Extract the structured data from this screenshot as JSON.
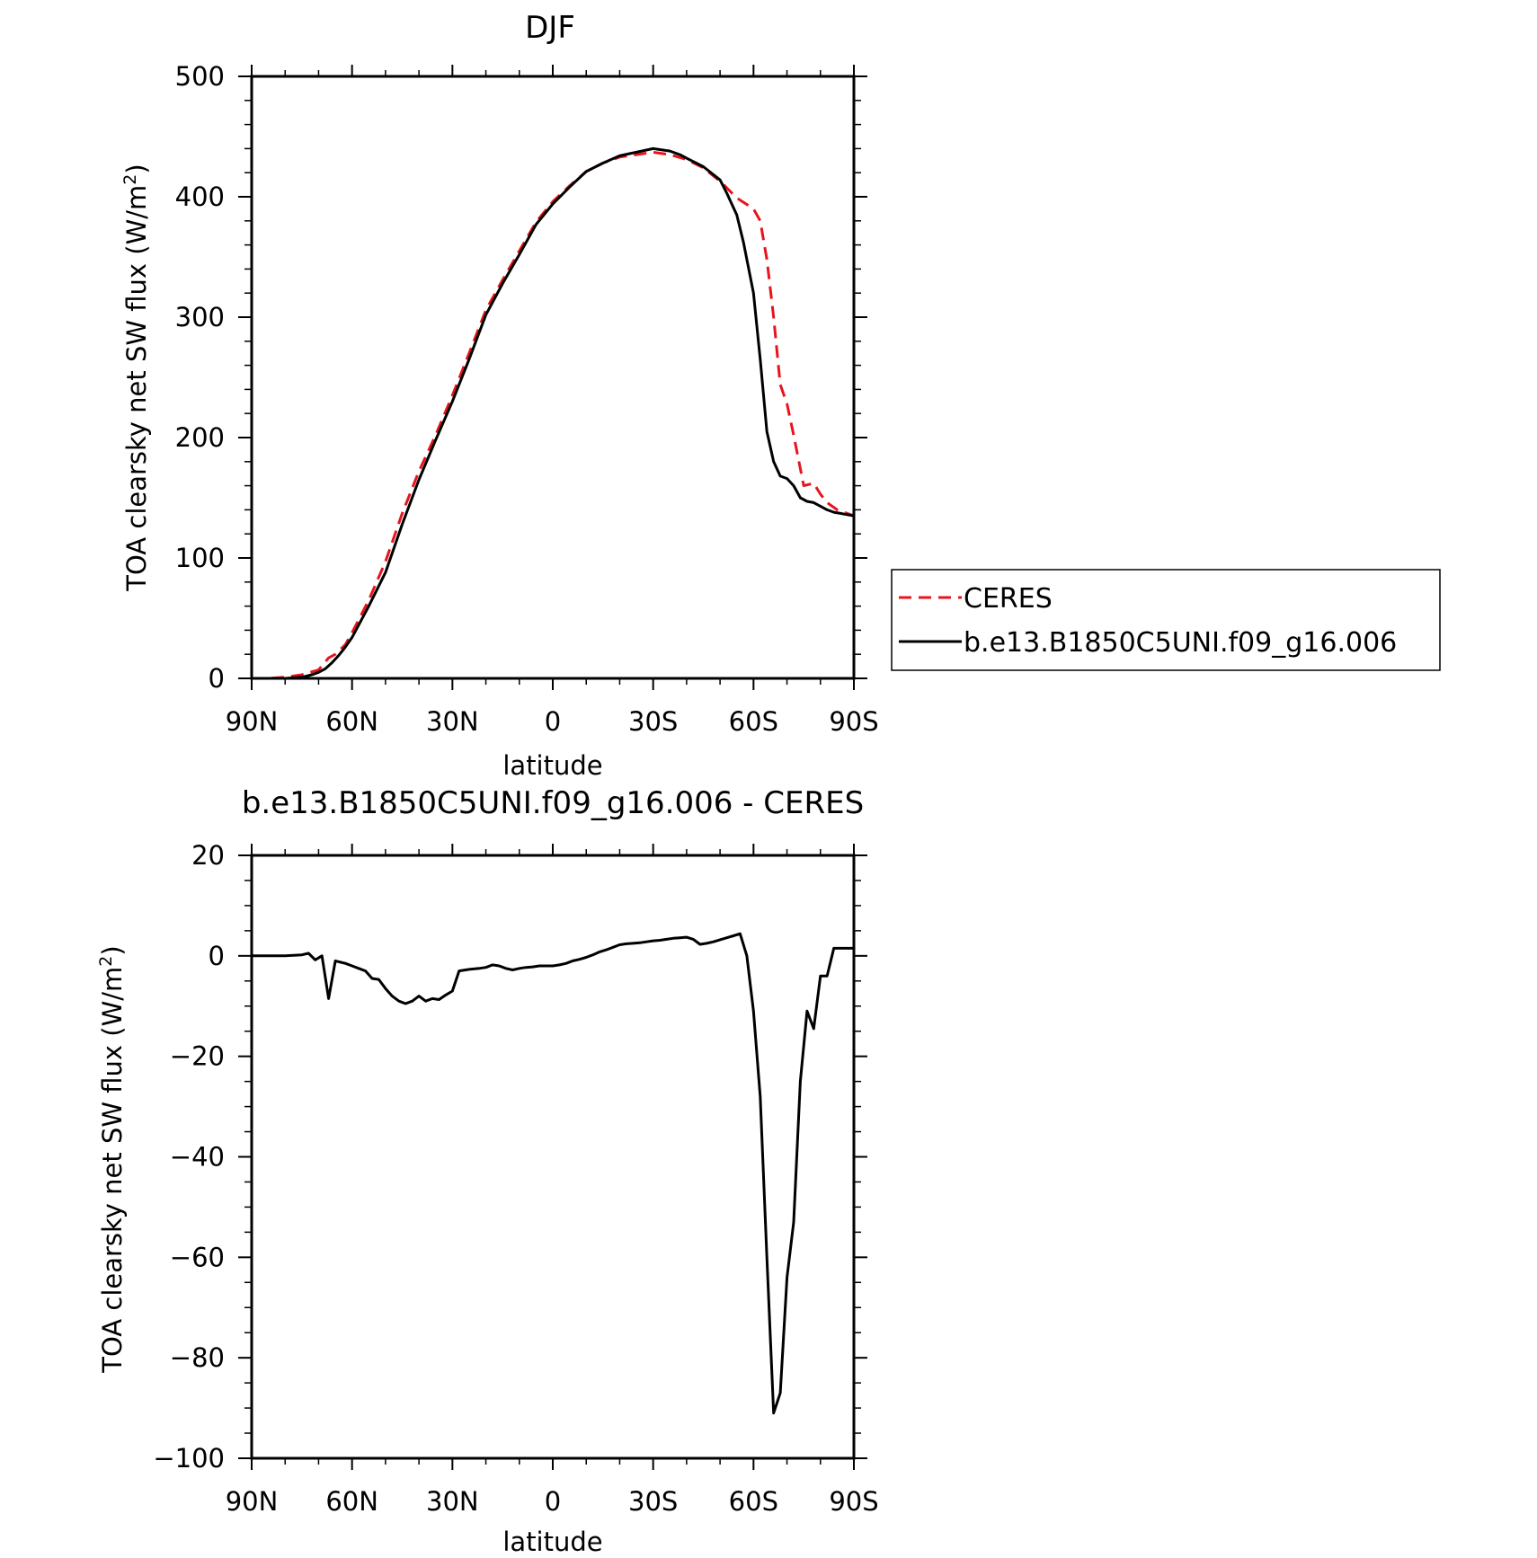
{
  "chart_data": [
    {
      "type": "line",
      "title": "DJF",
      "xlabel": "latitude",
      "ylabel": "TOA clearsky net SW flux (W/m",
      "ylabel_sup": "2",
      "ylabel_close": ")",
      "xlim": [
        90,
        -90
      ],
      "ylim": [
        0,
        500
      ],
      "x_ticks": [
        90,
        60,
        30,
        0,
        -30,
        -60,
        -90
      ],
      "x_tick_labels": [
        "90N",
        "60N",
        "30N",
        "0",
        "30S",
        "60S",
        "90S"
      ],
      "y_ticks": [
        0,
        100,
        200,
        300,
        400,
        500
      ],
      "y_tick_labels": [
        "0",
        "100",
        "200",
        "300",
        "400",
        "500"
      ],
      "legend": "right",
      "grid": false,
      "series": [
        {
          "name": "CERES",
          "color": "#e8141c",
          "dash": "dashed",
          "x": [
            90,
            85,
            80,
            75,
            70,
            67,
            65,
            62,
            60,
            55,
            50,
            45,
            40,
            35,
            30,
            25,
            20,
            15,
            10,
            5,
            0,
            -5,
            -10,
            -15,
            -20,
            -25,
            -30,
            -35,
            -40,
            -45,
            -50,
            -55,
            -60,
            -62,
            -64,
            -66,
            -68,
            -70,
            -72,
            -75,
            -78,
            -80,
            -82,
            -85,
            -87,
            -90
          ],
          "values": [
            0,
            0,
            1,
            3,
            7,
            17,
            20,
            28,
            38,
            65,
            97,
            137,
            172,
            202,
            235,
            270,
            306,
            331,
            355,
            379,
            396,
            409,
            421,
            428,
            433,
            435,
            437,
            435,
            431,
            424,
            413,
            399,
            390,
            380,
            348,
            300,
            244,
            228,
            202,
            160,
            162,
            153,
            146,
            140,
            138,
            135
          ]
        },
        {
          "name": "b.e13.B1850C5UNI.f09_g16.006",
          "color": "#000000",
          "dash": "solid",
          "x": [
            90,
            85,
            80,
            75,
            72,
            70,
            68,
            66,
            64,
            62,
            60,
            55,
            50,
            45,
            40,
            35,
            30,
            25,
            20,
            15,
            10,
            5,
            0,
            -5,
            -10,
            -15,
            -20,
            -25,
            -30,
            -35,
            -38,
            -40,
            -45,
            -50,
            -52,
            -55,
            -57,
            -60,
            -62,
            -64,
            -66,
            -68,
            -70,
            -72,
            -74,
            -76,
            -78,
            -80,
            -82,
            -84,
            -86,
            -88,
            -90
          ],
          "values": [
            0,
            0,
            0,
            1,
            3,
            5,
            8,
            13,
            19,
            26,
            34,
            60,
            88,
            128,
            165,
            198,
            230,
            265,
            302,
            328,
            352,
            377,
            394,
            408,
            421,
            428,
            434,
            437,
            440,
            438,
            435,
            432,
            425,
            414,
            403,
            385,
            362,
            320,
            265,
            205,
            180,
            168,
            166,
            160,
            150,
            147,
            146,
            143,
            140,
            138,
            137,
            136,
            135
          ]
        }
      ]
    },
    {
      "type": "line",
      "title": "b.e13.B1850C5UNI.f09_g16.006 - CERES",
      "xlabel": "latitude",
      "ylabel": "TOA clearsky net SW flux (W/m",
      "ylabel_sup": "2",
      "ylabel_close": ")",
      "xlim": [
        90,
        -90
      ],
      "ylim": [
        -100,
        20
      ],
      "x_ticks": [
        90,
        60,
        30,
        0,
        -30,
        -60,
        -90
      ],
      "x_tick_labels": [
        "90N",
        "60N",
        "30N",
        "0",
        "30S",
        "60S",
        "90S"
      ],
      "y_ticks": [
        -100,
        -80,
        -60,
        -40,
        -20,
        0,
        20
      ],
      "y_tick_labels": [
        "−100",
        "−80",
        "−60",
        "−40",
        "−20",
        "0",
        "20"
      ],
      "grid": false,
      "series": [
        {
          "color": "#000000",
          "dash": "solid",
          "x": [
            90,
            80,
            75,
            73,
            71,
            69,
            67,
            65,
            62,
            60,
            58,
            56,
            54,
            52,
            50,
            48,
            46,
            44,
            42,
            40,
            38,
            36,
            34,
            32,
            30,
            28,
            25,
            22,
            20,
            18,
            16,
            14,
            12,
            10,
            8,
            6,
            4,
            2,
            0,
            -2,
            -4,
            -6,
            -8,
            -10,
            -12,
            -14,
            -16,
            -18,
            -20,
            -22,
            -24,
            -26,
            -28,
            -30,
            -32,
            -34,
            -36,
            -38,
            -40,
            -42,
            -44,
            -46,
            -48,
            -50,
            -52,
            -54,
            -56,
            -58,
            -60,
            -62,
            -64,
            -66,
            -68,
            -70,
            -72,
            -74,
            -76,
            -78,
            -80,
            -82,
            -84,
            -86,
            -88,
            -90
          ],
          "values": [
            0,
            0,
            0.2,
            0.5,
            -0.8,
            0,
            -8.5,
            -1,
            -1.5,
            -2,
            -2.5,
            -3,
            -4.5,
            -4.7,
            -6.5,
            -8,
            -9,
            -9.5,
            -9,
            -8,
            -9,
            -8.5,
            -8.7,
            -7.8,
            -7,
            -3,
            -2.7,
            -2.5,
            -2.3,
            -1.8,
            -2,
            -2.5,
            -2.8,
            -2.5,
            -2.3,
            -2.2,
            -2,
            -2,
            -2,
            -1.8,
            -1.5,
            -1,
            -0.7,
            -0.3,
            0.2,
            0.8,
            1.2,
            1.7,
            2.2,
            2.4,
            2.5,
            2.6,
            2.8,
            3,
            3.1,
            3.3,
            3.5,
            3.6,
            3.7,
            3.3,
            2.3,
            2.5,
            2.8,
            3.2,
            3.6,
            4,
            4.4,
            0,
            -11,
            -28,
            -60,
            -91,
            -87,
            -64,
            -53,
            -25,
            -11,
            -14.5,
            -4,
            -4,
            1.5,
            1.5,
            1.5,
            1.5
          ]
        }
      ]
    }
  ]
}
